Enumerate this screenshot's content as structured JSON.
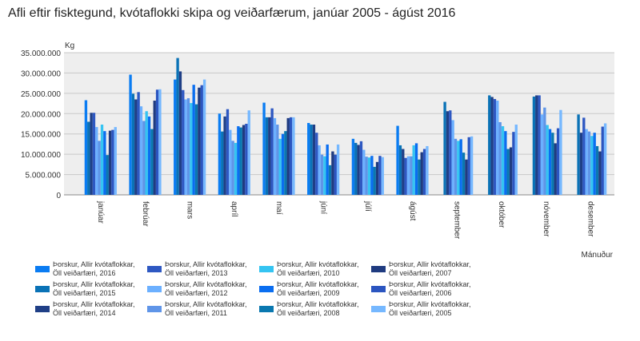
{
  "chart_data": {
    "type": "bar",
    "title": "Afli eftir fisktegund, kvótaflokki skipa og veiðarfærum, janúar 2005 - ágúst 2016",
    "xlabel": "Mánuður",
    "ylabel": "Kg",
    "ylim": [
      0,
      35000000
    ],
    "yticks": [
      "0",
      "5.000.000",
      "10.000.000",
      "15.000.000",
      "20.000.000",
      "25.000.000",
      "30.000.000",
      "35.000.000"
    ],
    "grid": true,
    "legend": "bottom",
    "categories": [
      "janúar",
      "febrúar",
      "mars",
      "apríl",
      "maí",
      "júní",
      "júlí",
      "ágúst",
      "september",
      "október",
      "nóvember",
      "desember"
    ],
    "series": [
      {
        "name": "Þorskur, Allir kvótaflokkar, Öll veiðarfæri, 2016",
        "color": "#0a7cf2",
        "values": [
          23300000,
          29600000,
          28400000,
          20000000,
          22700000,
          17700000,
          13800000,
          17000000,
          null,
          null,
          null,
          null
        ]
      },
      {
        "name": "Þorskur, Allir kvótaflokkar, Öll veiðarfæri, 2015",
        "color": "#0a72b6",
        "values": [
          18000000,
          24900000,
          33700000,
          15600000,
          19100000,
          17300000,
          12800000,
          12200000,
          22900000,
          24500000,
          24200000,
          19800000
        ]
      },
      {
        "name": "Þorskur, Allir kvótaflokkar, Öll veiðarfæri, 2014",
        "color": "#1f3f86",
        "values": [
          20200000,
          23500000,
          30400000,
          19300000,
          19100000,
          17300000,
          12300000,
          11300000,
          20600000,
          24100000,
          24500000,
          15300000
        ]
      },
      {
        "name": "Þorskur, Allir kvótaflokkar, Öll veiðarfæri, 2013",
        "color": "#2e58c2",
        "values": [
          20200000,
          25300000,
          25800000,
          21100000,
          21300000,
          15300000,
          13200000,
          9100000,
          20800000,
          23600000,
          24500000,
          19000000
        ]
      },
      {
        "name": "Þorskur, Allir kvótaflokkar, Öll veiðarfæri, 2012",
        "color": "#6cb0ff",
        "values": [
          16700000,
          21800000,
          23500000,
          16000000,
          18900000,
          12200000,
          11100000,
          9500000,
          18400000,
          23200000,
          19800000,
          16200000
        ]
      },
      {
        "name": "Þorskur, Allir kvótaflokkar, Öll veiðarfæri, 2011",
        "color": "#5f95e8",
        "values": [
          13300000,
          18200000,
          23800000,
          13300000,
          17300000,
          9900000,
          9400000,
          9500000,
          13800000,
          17900000,
          21500000,
          15600000
        ]
      },
      {
        "name": "Þorskur, Allir kvótaflokkar, Öll veiðarfæri, 2010",
        "color": "#35c4f2",
        "values": [
          17300000,
          20600000,
          22600000,
          12800000,
          13800000,
          9500000,
          9200000,
          12200000,
          13300000,
          16900000,
          17200000,
          14500000
        ]
      },
      {
        "name": "Þorskur, Allir kvótaflokkar, Öll veiðarfæri, 2009",
        "color": "#0a6ef0",
        "values": [
          15700000,
          19300000,
          27100000,
          16900000,
          15000000,
          12400000,
          9600000,
          12700000,
          13700000,
          15700000,
          16200000,
          15300000
        ]
      },
      {
        "name": "Þorskur, Allir kvótaflokkar, Öll veiðarfæri, 2008",
        "color": "#0a78b0",
        "values": [
          9800000,
          16200000,
          22300000,
          16600000,
          15700000,
          7300000,
          6900000,
          8700000,
          10400000,
          11300000,
          15300000,
          12000000
        ]
      },
      {
        "name": "Þorskur, Allir kvótaflokkar, Öll veiðarfæri, 2007",
        "color": "#1f3b80",
        "values": [
          15800000,
          23200000,
          26400000,
          17200000,
          18900000,
          10700000,
          8100000,
          10500000,
          8700000,
          11700000,
          12700000,
          10700000
        ]
      },
      {
        "name": "Þorskur, Allir kvótaflokkar, Öll veiðarfæri, 2006",
        "color": "#2b55c0",
        "values": [
          16000000,
          25900000,
          27000000,
          17500000,
          19100000,
          9900000,
          9600000,
          11300000,
          14200000,
          15500000,
          16400000,
          16800000
        ]
      },
      {
        "name": "Þorskur, Allir kvótaflokkar, Öll veiðarfæri, 2005",
        "color": "#76b8ff",
        "values": [
          16700000,
          26000000,
          28400000,
          20800000,
          19100000,
          12400000,
          9300000,
          12000000,
          14400000,
          17300000,
          20900000,
          17600000
        ]
      }
    ]
  }
}
